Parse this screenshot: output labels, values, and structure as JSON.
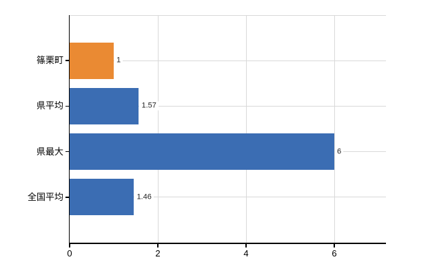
{
  "chart_data": {
    "type": "bar",
    "orientation": "horizontal",
    "title": "",
    "xlabel": "",
    "ylabel": "",
    "categories": [
      "篠栗町",
      "県平均",
      "県最大",
      "全国平均"
    ],
    "values": [
      1,
      1.57,
      6,
      1.46
    ],
    "value_labels": [
      "1",
      "1.57",
      "6",
      "1.46"
    ],
    "bar_colors": [
      "#ea8a33",
      "#3b6db3",
      "#3b6db3",
      "#3b6db3"
    ],
    "xlim": [
      0,
      7.2
    ],
    "xticks": [
      0,
      2,
      4,
      6
    ],
    "xtick_labels": [
      "0",
      "2",
      "4",
      "6"
    ],
    "grid": true,
    "legend": false,
    "colors": {
      "grid": "#d9d9d9",
      "axis": "#000000",
      "category_text": "#000000",
      "value_text": "#222222",
      "background": "#ffffff"
    }
  }
}
